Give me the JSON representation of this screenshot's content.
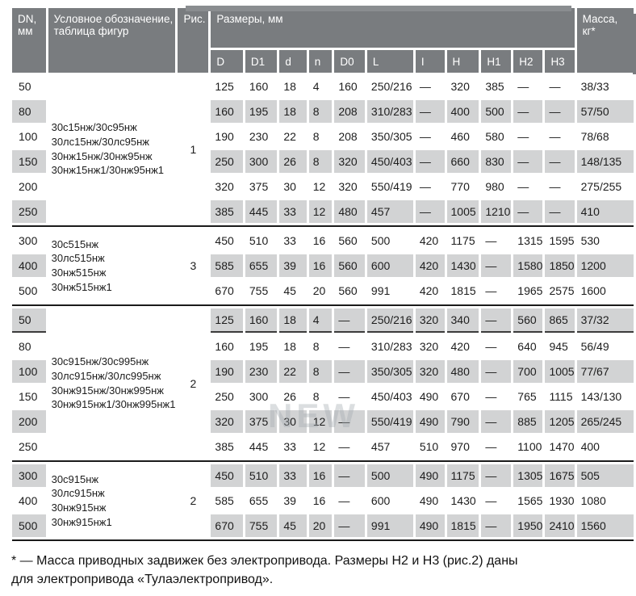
{
  "colors": {
    "header_bg": "#797c7f",
    "row_shade": "#d2d3d4",
    "separator": "#1b1b1b",
    "text": "#1d1d1d"
  },
  "header": {
    "dn": "DN,\nмм",
    "designation": "Условное обозначение,\nтаблица фигур",
    "figure": "Рис.",
    "sizes": "Размеры, мм",
    "mass": "Масса,\nкг*",
    "size_cols": [
      "D",
      "D1",
      "d",
      "n",
      "D0",
      "L",
      "I",
      "H",
      "H1",
      "H2",
      "H3"
    ]
  },
  "groups": [
    {
      "designation": [
        "30с15нж/30с95нж",
        "30лс15нж/30лс95нж",
        "30нж15нж/30нж95нж",
        "30нж15нж1/30нж95нж1"
      ],
      "fig": "1",
      "rows": [
        {
          "dn": "50",
          "shaded": false,
          "underline": false,
          "values": [
            "125",
            "160",
            "18",
            "4",
            "160",
            "250/216",
            "—",
            "320",
            "385",
            "—",
            "—",
            "38/33"
          ]
        },
        {
          "dn": "80",
          "shaded": true,
          "underline": false,
          "values": [
            "160",
            "195",
            "18",
            "8",
            "208",
            "310/283",
            "—",
            "400",
            "500",
            "—",
            "—",
            "57/50"
          ]
        },
        {
          "dn": "100",
          "shaded": false,
          "underline": false,
          "values": [
            "190",
            "230",
            "22",
            "8",
            "208",
            "350/305",
            "—",
            "460",
            "580",
            "—",
            "—",
            "78/68"
          ]
        },
        {
          "dn": "150",
          "shaded": true,
          "underline": false,
          "values": [
            "250",
            "300",
            "26",
            "8",
            "320",
            "450/403",
            "—",
            "660",
            "830",
            "—",
            "—",
            "148/135"
          ]
        },
        {
          "dn": "200",
          "shaded": false,
          "underline": false,
          "values": [
            "320",
            "375",
            "30",
            "12",
            "320",
            "550/419",
            "—",
            "770",
            "980",
            "—",
            "—",
            "275/255"
          ]
        },
        {
          "dn": "250",
          "shaded": true,
          "underline": false,
          "values": [
            "385",
            "445",
            "33",
            "12",
            "480",
            "457",
            "—",
            "1005",
            "1210",
            "—",
            "—",
            "410"
          ]
        }
      ]
    },
    {
      "designation": [
        "30с515нж",
        "30лс515нж",
        "30нж515нж",
        "30нж515нж1"
      ],
      "fig": "3",
      "rows": [
        {
          "dn": "300",
          "shaded": false,
          "underline": false,
          "values": [
            "450",
            "510",
            "33",
            "16",
            "560",
            "500",
            "420",
            "1175",
            "—",
            "1315",
            "1595",
            "530"
          ]
        },
        {
          "dn": "400",
          "shaded": true,
          "underline": false,
          "values": [
            "585",
            "655",
            "39",
            "16",
            "560",
            "600",
            "420",
            "1430",
            "—",
            "1580",
            "1850",
            "1200"
          ]
        },
        {
          "dn": "500",
          "shaded": false,
          "underline": false,
          "values": [
            "670",
            "755",
            "45",
            "20",
            "560",
            "991",
            "420",
            "1815",
            "—",
            "1965",
            "2575",
            "1600"
          ]
        }
      ]
    },
    {
      "designation": [
        "30с915нж/30с995нж",
        "30лс915нж/30лс995нж",
        "30нж915нж/30нж995нж",
        "30нж915нж1/30нж995нж1"
      ],
      "fig": "2",
      "rows": [
        {
          "dn": "50",
          "shaded": true,
          "underline": true,
          "values": [
            "125",
            "160",
            "18",
            "4",
            "—",
            "250/216",
            "320",
            "340",
            "—",
            "560",
            "865",
            "37/32"
          ]
        },
        {
          "dn": "80",
          "shaded": false,
          "underline": false,
          "values": [
            "160",
            "195",
            "18",
            "8",
            "—",
            "310/283",
            "320",
            "420",
            "—",
            "640",
            "945",
            "56/49"
          ]
        },
        {
          "dn": "100",
          "shaded": true,
          "underline": false,
          "values": [
            "190",
            "230",
            "22",
            "8",
            "—",
            "350/305",
            "320",
            "480",
            "—",
            "700",
            "1005",
            "77/67"
          ]
        },
        {
          "dn": "150",
          "shaded": false,
          "underline": false,
          "values": [
            "250",
            "300",
            "26",
            "8",
            "—",
            "450/403",
            "490",
            "670",
            "—",
            "765",
            "1115",
            "143/130"
          ]
        },
        {
          "dn": "200",
          "shaded": true,
          "underline": false,
          "values": [
            "320",
            "375",
            "30",
            "12",
            "—",
            "550/419",
            "490",
            "790",
            "—",
            "885",
            "1205",
            "265/245"
          ]
        },
        {
          "dn": "250",
          "shaded": false,
          "underline": false,
          "values": [
            "385",
            "445",
            "33",
            "12",
            "—",
            "457",
            "510",
            "970",
            "—",
            "1100",
            "1470",
            "400"
          ]
        }
      ]
    },
    {
      "designation": [
        "30с915нж",
        "30лс915нж",
        "30нж915нж",
        "30нж915нж1"
      ],
      "fig": "2",
      "rows": [
        {
          "dn": "300",
          "shaded": true,
          "underline": false,
          "values": [
            "450",
            "510",
            "33",
            "16",
            "—",
            "500",
            "490",
            "1175",
            "—",
            "1305",
            "1675",
            "505"
          ]
        },
        {
          "dn": "400",
          "shaded": false,
          "underline": false,
          "values": [
            "585",
            "655",
            "39",
            "16",
            "—",
            "600",
            "490",
            "1430",
            "—",
            "1565",
            "1930",
            "1080"
          ]
        },
        {
          "dn": "500",
          "shaded": true,
          "underline": false,
          "values": [
            "670",
            "755",
            "45",
            "20",
            "—",
            "991",
            "490",
            "1815",
            "—",
            "1950",
            "2410",
            "1560"
          ]
        }
      ]
    }
  ],
  "footnote": "* — Масса приводных задвижек без электропривода. Размеры Н2 и Н3 (рис.2) даны\nдля электропривода «Тулаэлектропривод».",
  "watermark": "NEW"
}
